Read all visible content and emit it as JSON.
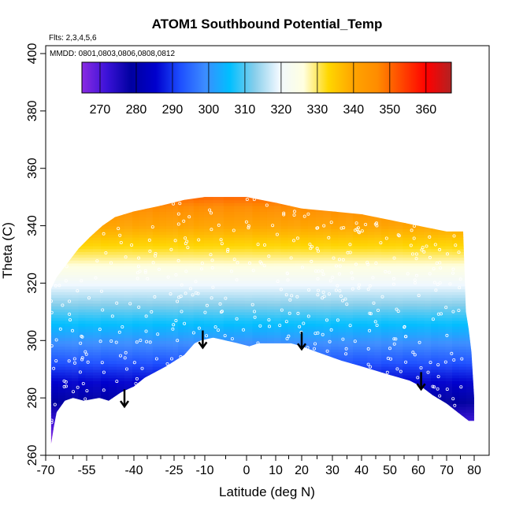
{
  "chart_data": {
    "type": "heatmap",
    "title": "ATOM1 Southbound Potential_Temp",
    "flights_note": "Flts: 2,3,4,5,6",
    "dates_note": "MMDD: 0801,0803,0806,0808,0812",
    "xlabel": "Latitude (deg N)",
    "ylabel": "Theta (C)",
    "xlim": [
      -70,
      80
    ],
    "ylim": [
      260,
      400
    ],
    "x_ticks": [
      "-70",
      "-55",
      "-40",
      "-25",
      "-10",
      "0",
      "10",
      "20",
      "30",
      "40",
      "50",
      "60",
      "70",
      "80"
    ],
    "x_tick_values": [
      -70,
      -55,
      -40,
      -25,
      -10,
      0,
      10,
      20,
      30,
      40,
      50,
      60,
      70,
      80
    ],
    "x_minor_ticks": [
      -65,
      -60,
      -50,
      -45,
      -35,
      -30,
      -20,
      -15,
      -5,
      5,
      15,
      25,
      35,
      45,
      55,
      65,
      75
    ],
    "y_ticks": [
      "260",
      "280",
      "300",
      "320",
      "340",
      "360",
      "380",
      "400"
    ],
    "y_tick_values": [
      260,
      280,
      300,
      320,
      340,
      360,
      380,
      400
    ],
    "colorbar": {
      "min": 265,
      "max": 367,
      "ticks": [
        "270",
        "280",
        "290",
        "300",
        "310",
        "320",
        "330",
        "340",
        "350",
        "360"
      ],
      "tick_values": [
        270,
        280,
        290,
        300,
        310,
        320,
        330,
        340,
        350,
        360
      ],
      "colors": [
        "#8a2be2",
        "#3b12d8",
        "#0000a0",
        "#0000cd",
        "#1e50ff",
        "#3c8cff",
        "#00bfff",
        "#87ceeb",
        "#f0f8ff",
        "#ffffe0",
        "#ffd700",
        "#ffa500",
        "#ff8c00",
        "#ff4500",
        "#ff0000",
        "#b22222"
      ]
    },
    "bottom_boundary": [
      [
        -68,
        264
      ],
      [
        -67,
        270
      ],
      [
        -66,
        275
      ],
      [
        -63,
        279
      ],
      [
        -60,
        280
      ],
      [
        -56,
        279
      ],
      [
        -51,
        280
      ],
      [
        -48,
        279
      ],
      [
        -44,
        282
      ],
      [
        -40,
        284
      ],
      [
        -36,
        287
      ],
      [
        -28,
        291
      ],
      [
        -20,
        295
      ],
      [
        -15,
        299
      ],
      [
        -12,
        300
      ],
      [
        -8,
        301
      ],
      [
        -5,
        300
      ],
      [
        -2,
        299
      ],
      [
        1,
        298
      ],
      [
        4,
        299
      ],
      [
        8,
        299
      ],
      [
        12,
        299
      ],
      [
        16,
        299
      ],
      [
        20,
        298
      ],
      [
        25,
        296
      ],
      [
        33,
        293
      ],
      [
        40,
        291
      ],
      [
        50,
        288
      ],
      [
        57,
        286
      ],
      [
        61,
        284
      ],
      [
        65,
        281
      ],
      [
        70,
        278
      ],
      [
        74,
        275
      ],
      [
        78,
        272
      ]
    ],
    "top_boundary": [
      [
        -68,
        318
      ],
      [
        -66,
        322
      ],
      [
        -62,
        327
      ],
      [
        -58,
        332
      ],
      [
        -54,
        336
      ],
      [
        -50,
        340
      ],
      [
        -46,
        343
      ],
      [
        -40,
        345
      ],
      [
        -30,
        347
      ],
      [
        -20,
        349
      ],
      [
        -10,
        350
      ],
      [
        0,
        350
      ],
      [
        10,
        348
      ],
      [
        20,
        346
      ],
      [
        30,
        345
      ],
      [
        40,
        344
      ],
      [
        50,
        342
      ],
      [
        60,
        340
      ],
      [
        70,
        338
      ],
      [
        76,
        338
      ],
      [
        77,
        310
      ],
      [
        78,
        304
      ],
      [
        79,
        296
      ],
      [
        80,
        280
      ],
      [
        80,
        272
      ]
    ],
    "arrows": [
      {
        "lat": -43,
        "theta_tail": 283,
        "theta_head": 277
      },
      {
        "lat": -11,
        "theta_tail": 303.5,
        "theta_head": 297.5
      },
      {
        "lat": 20,
        "theta_tail": 303,
        "theta_head": 297
      },
      {
        "lat": 61,
        "theta_tail": 289,
        "theta_head": 283
      }
    ],
    "grid": false,
    "legend_position": "top colorbar"
  }
}
